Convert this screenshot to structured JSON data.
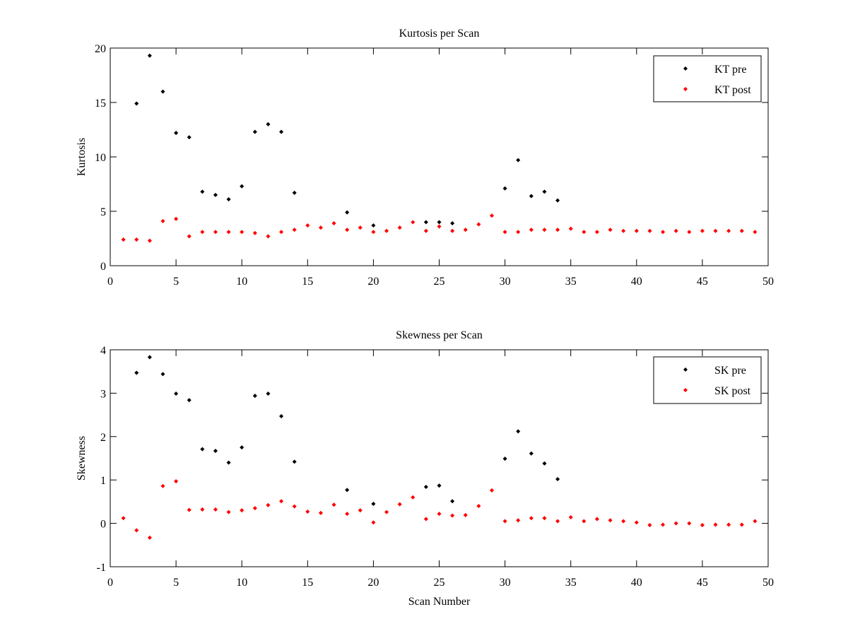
{
  "chart_data": [
    {
      "type": "scatter",
      "title": "Kurtosis per Scan",
      "xlabel": "",
      "ylabel": "Kurtosis",
      "xlim": [
        0,
        50
      ],
      "ylim": [
        0,
        20
      ],
      "xticks": [
        0,
        5,
        10,
        15,
        20,
        25,
        30,
        35,
        40,
        45,
        50
      ],
      "yticks": [
        0,
        5,
        10,
        15,
        20
      ],
      "grid": false,
      "legend_position": "top-right",
      "series": [
        {
          "name": "KT pre",
          "color": "#000000",
          "points": [
            [
              2,
              14.9
            ],
            [
              3,
              19.3
            ],
            [
              4,
              16.0
            ],
            [
              5,
              12.2
            ],
            [
              6,
              11.8
            ],
            [
              7,
              6.8
            ],
            [
              8,
              6.5
            ],
            [
              9,
              6.1
            ],
            [
              10,
              7.3
            ],
            [
              11,
              12.3
            ],
            [
              12,
              13.0
            ],
            [
              13,
              12.3
            ],
            [
              14,
              6.7
            ],
            [
              18,
              4.9
            ],
            [
              20,
              3.7
            ],
            [
              24,
              4.0
            ],
            [
              25,
              4.0
            ],
            [
              26,
              3.9
            ],
            [
              30,
              7.1
            ],
            [
              31,
              9.7
            ],
            [
              32,
              6.4
            ],
            [
              33,
              6.8
            ],
            [
              34,
              6.0
            ]
          ]
        },
        {
          "name": "KT post",
          "color": "#ff0000",
          "points": [
            [
              1,
              2.4
            ],
            [
              2,
              2.4
            ],
            [
              3,
              2.3
            ],
            [
              4,
              4.1
            ],
            [
              5,
              4.3
            ],
            [
              6,
              2.7
            ],
            [
              7,
              3.1
            ],
            [
              8,
              3.1
            ],
            [
              9,
              3.1
            ],
            [
              10,
              3.1
            ],
            [
              11,
              3.0
            ],
            [
              12,
              2.7
            ],
            [
              13,
              3.1
            ],
            [
              14,
              3.3
            ],
            [
              15,
              3.7
            ],
            [
              16,
              3.5
            ],
            [
              17,
              3.9
            ],
            [
              18,
              3.3
            ],
            [
              19,
              3.5
            ],
            [
              20,
              3.1
            ],
            [
              21,
              3.2
            ],
            [
              22,
              3.5
            ],
            [
              23,
              4.0
            ],
            [
              24,
              3.2
            ],
            [
              25,
              3.6
            ],
            [
              26,
              3.2
            ],
            [
              27,
              3.3
            ],
            [
              28,
              3.8
            ],
            [
              29,
              4.6
            ],
            [
              30,
              3.1
            ],
            [
              31,
              3.1
            ],
            [
              32,
              3.3
            ],
            [
              33,
              3.3
            ],
            [
              34,
              3.3
            ],
            [
              35,
              3.4
            ],
            [
              36,
              3.1
            ],
            [
              37,
              3.1
            ],
            [
              38,
              3.3
            ],
            [
              39,
              3.2
            ],
            [
              40,
              3.2
            ],
            [
              41,
              3.2
            ],
            [
              42,
              3.1
            ],
            [
              43,
              3.2
            ],
            [
              44,
              3.1
            ],
            [
              45,
              3.2
            ],
            [
              46,
              3.2
            ],
            [
              47,
              3.2
            ],
            [
              48,
              3.2
            ],
            [
              49,
              3.1
            ]
          ]
        }
      ]
    },
    {
      "type": "scatter",
      "title": "Skewness per Scan",
      "xlabel": "Scan Number",
      "ylabel": "Skewness",
      "xlim": [
        0,
        50
      ],
      "ylim": [
        -1,
        4
      ],
      "xticks": [
        0,
        5,
        10,
        15,
        20,
        25,
        30,
        35,
        40,
        45,
        50
      ],
      "yticks": [
        -1,
        0,
        1,
        2,
        3,
        4
      ],
      "grid": false,
      "legend_position": "top-right",
      "series": [
        {
          "name": "SK pre",
          "color": "#000000",
          "points": [
            [
              2,
              3.47
            ],
            [
              3,
              3.83
            ],
            [
              4,
              3.44
            ],
            [
              5,
              2.99
            ],
            [
              6,
              2.84
            ],
            [
              7,
              1.71
            ],
            [
              8,
              1.67
            ],
            [
              9,
              1.4
            ],
            [
              10,
              1.75
            ],
            [
              11,
              2.94
            ],
            [
              12,
              2.99
            ],
            [
              13,
              2.47
            ],
            [
              14,
              1.42
            ],
            [
              18,
              0.77
            ],
            [
              20,
              0.45
            ],
            [
              24,
              0.84
            ],
            [
              25,
              0.87
            ],
            [
              26,
              0.51
            ],
            [
              30,
              1.49
            ],
            [
              31,
              2.12
            ],
            [
              32,
              1.61
            ],
            [
              33,
              1.38
            ],
            [
              34,
              1.02
            ]
          ]
        },
        {
          "name": "SK post",
          "color": "#ff0000",
          "points": [
            [
              1,
              0.12
            ],
            [
              2,
              -0.16
            ],
            [
              3,
              -0.33
            ],
            [
              4,
              0.86
            ],
            [
              5,
              0.97
            ],
            [
              6,
              0.31
            ],
            [
              7,
              0.32
            ],
            [
              8,
              0.32
            ],
            [
              9,
              0.26
            ],
            [
              10,
              0.3
            ],
            [
              11,
              0.35
            ],
            [
              12,
              0.42
            ],
            [
              13,
              0.51
            ],
            [
              14,
              0.39
            ],
            [
              15,
              0.27
            ],
            [
              16,
              0.24
            ],
            [
              17,
              0.43
            ],
            [
              18,
              0.22
            ],
            [
              19,
              0.3
            ],
            [
              20,
              0.02
            ],
            [
              21,
              0.26
            ],
            [
              22,
              0.44
            ],
            [
              23,
              0.6
            ],
            [
              24,
              0.1
            ],
            [
              25,
              0.22
            ],
            [
              26,
              0.18
            ],
            [
              27,
              0.19
            ],
            [
              28,
              0.4
            ],
            [
              29,
              0.76
            ],
            [
              30,
              0.05
            ],
            [
              31,
              0.07
            ],
            [
              32,
              0.12
            ],
            [
              33,
              0.12
            ],
            [
              34,
              0.05
            ],
            [
              35,
              0.14
            ],
            [
              36,
              0.05
            ],
            [
              37,
              0.1
            ],
            [
              38,
              0.07
            ],
            [
              39,
              0.05
            ],
            [
              40,
              0.02
            ],
            [
              41,
              -0.04
            ],
            [
              42,
              -0.03
            ],
            [
              43,
              0.0
            ],
            [
              44,
              0.0
            ],
            [
              45,
              -0.04
            ],
            [
              46,
              -0.03
            ],
            [
              47,
              -0.03
            ],
            [
              48,
              -0.03
            ],
            [
              49,
              0.05
            ]
          ]
        }
      ]
    }
  ]
}
